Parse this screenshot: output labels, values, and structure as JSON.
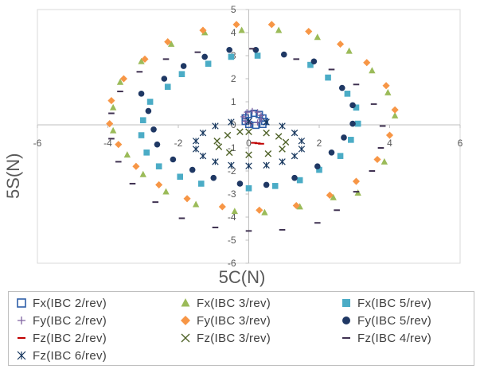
{
  "chart_data": {
    "type": "scatter",
    "xlabel": "5C(N)",
    "ylabel": "5S(N)",
    "xlim": [
      -6,
      6
    ],
    "ylim": [
      -6,
      5
    ],
    "x_ticks": [
      -6,
      -4,
      -2,
      0,
      2,
      4,
      6
    ],
    "y_ticks": [
      -6,
      -5,
      -4,
      -3,
      -2,
      -1,
      0,
      1,
      2,
      3,
      4,
      5
    ],
    "grid": false,
    "legend_position": "bottom",
    "series": [
      {
        "name": "Fx(IBC 2/rev)",
        "color": "#2E5FA8",
        "marker": "open-square",
        "points": [
          [
            0.0,
            0.45
          ],
          [
            0.15,
            0.5
          ],
          [
            0.3,
            0.45
          ],
          [
            0.4,
            0.3
          ],
          [
            0.45,
            0.15
          ],
          [
            0.4,
            0.02
          ],
          [
            0.2,
            -0.02
          ],
          [
            0.0,
            0.02
          ],
          [
            -0.1,
            0.15
          ],
          [
            -0.1,
            0.3
          ]
        ]
      },
      {
        "name": "Fx(IBC 3/rev)",
        "color": "#9BBB59",
        "marker": "triangle",
        "points": [
          [
            -0.2,
            4.1
          ],
          [
            0.85,
            4.1
          ],
          [
            1.95,
            3.8
          ],
          [
            2.85,
            3.2
          ],
          [
            3.5,
            2.35
          ],
          [
            3.95,
            1.4
          ],
          [
            4.15,
            0.4
          ],
          [
            3.85,
            -1.6
          ],
          [
            3.1,
            -2.95
          ],
          [
            2.4,
            -3.15
          ],
          [
            1.45,
            -3.55
          ],
          [
            0.45,
            -3.8
          ],
          [
            -0.4,
            -3.75
          ],
          [
            -1.5,
            -3.45
          ],
          [
            -2.35,
            -2.9
          ],
          [
            -3.0,
            -2.15
          ],
          [
            -3.45,
            -1.3
          ],
          [
            -3.85,
            -0.25
          ],
          [
            -3.85,
            0.75
          ],
          [
            -3.65,
            1.85
          ],
          [
            -3.05,
            2.75
          ],
          [
            -2.2,
            3.5
          ],
          [
            -1.25,
            4.0
          ]
        ]
      },
      {
        "name": "Fx(IBC 5/rev)",
        "color": "#4BACC6",
        "marker": "square",
        "points": [
          [
            0.25,
            3.0
          ],
          [
            1.75,
            2.6
          ],
          [
            2.25,
            2.05
          ],
          [
            2.8,
            1.35
          ],
          [
            3.05,
            0.75
          ],
          [
            3.1,
            0.05
          ],
          [
            2.9,
            -0.65
          ],
          [
            2.6,
            -1.35
          ],
          [
            2.0,
            -1.95
          ],
          [
            1.45,
            -2.4
          ],
          [
            0.75,
            -2.65
          ],
          [
            0.0,
            -2.75
          ],
          [
            -1.35,
            -2.55
          ],
          [
            -1.95,
            -2.25
          ],
          [
            -2.55,
            -1.8
          ],
          [
            -2.9,
            -1.2
          ],
          [
            -3.05,
            -0.45
          ],
          [
            -3.0,
            0.2
          ],
          [
            -2.8,
            1.0
          ],
          [
            -2.3,
            1.65
          ],
          [
            -1.9,
            2.2
          ],
          [
            -1.15,
            2.65
          ],
          [
            -0.5,
            2.95
          ]
        ]
      },
      {
        "name": "Fy(IBC 2/rev)",
        "color": "#8064A2",
        "marker": "plus",
        "points": [
          [
            -0.05,
            0.55
          ],
          [
            0.1,
            0.6
          ],
          [
            0.25,
            0.55
          ],
          [
            0.35,
            0.4
          ],
          [
            0.35,
            0.25
          ],
          [
            0.25,
            0.1
          ],
          [
            0.05,
            0.05
          ],
          [
            -0.1,
            0.15
          ],
          [
            -0.15,
            0.35
          ]
        ]
      },
      {
        "name": "Fy(IBC 3/rev)",
        "color": "#F79646",
        "marker": "diamond",
        "points": [
          [
            -0.35,
            4.35
          ],
          [
            0.65,
            4.35
          ],
          [
            1.7,
            4.05
          ],
          [
            2.6,
            3.5
          ],
          [
            3.35,
            2.7
          ],
          [
            3.9,
            1.7
          ],
          [
            4.15,
            0.65
          ],
          [
            4.0,
            -0.45
          ],
          [
            3.65,
            -1.5
          ],
          [
            3.05,
            -2.45
          ],
          [
            2.3,
            -3.05
          ],
          [
            1.35,
            -3.5
          ],
          [
            0.3,
            -3.7
          ],
          [
            -0.75,
            -3.55
          ],
          [
            -1.75,
            -3.2
          ],
          [
            -2.55,
            -2.6
          ],
          [
            -3.2,
            -1.8
          ],
          [
            -3.7,
            -0.85
          ],
          [
            -3.95,
            0.05
          ],
          [
            -3.9,
            1.05
          ],
          [
            -3.55,
            2.0
          ],
          [
            -2.95,
            2.85
          ],
          [
            -2.3,
            3.6
          ],
          [
            -1.3,
            4.1
          ]
        ]
      },
      {
        "name": "Fy(IBC 5/rev)",
        "color": "#1F3864",
        "marker": "circle",
        "points": [
          [
            0.2,
            3.25
          ],
          [
            1.0,
            3.05
          ],
          [
            1.85,
            2.75
          ],
          [
            2.65,
            1.6
          ],
          [
            2.95,
            0.85
          ],
          [
            2.95,
            0.05
          ],
          [
            2.7,
            -0.55
          ],
          [
            2.35,
            -1.2
          ],
          [
            1.95,
            -1.8
          ],
          [
            1.3,
            -2.3
          ],
          [
            0.5,
            -2.6
          ],
          [
            -0.25,
            -2.55
          ],
          [
            -1.0,
            -2.3
          ],
          [
            -1.6,
            -1.95
          ],
          [
            -2.15,
            -1.5
          ],
          [
            -2.6,
            -0.85
          ],
          [
            -2.7,
            -0.2
          ],
          [
            -2.85,
            0.6
          ],
          [
            -3.05,
            1.35
          ],
          [
            -2.4,
            2.0
          ],
          [
            -1.85,
            2.55
          ],
          [
            -1.25,
            2.95
          ],
          [
            -0.55,
            3.25
          ]
        ]
      },
      {
        "name": "Fz(IBC 2/rev)",
        "color": "#C00000",
        "marker": "dash",
        "points": [
          [
            0.15,
            -0.78
          ],
          [
            0.25,
            -0.8
          ],
          [
            0.35,
            -0.82
          ]
        ]
      },
      {
        "name": "Fz(IBC 3/rev)",
        "color": "#4F6228",
        "marker": "x",
        "points": [
          [
            0.0,
            -0.3
          ],
          [
            0.5,
            -0.35
          ],
          [
            0.85,
            -0.5
          ],
          [
            1.05,
            -0.75
          ],
          [
            0.95,
            -1.05
          ],
          [
            0.55,
            -1.25
          ],
          [
            0.0,
            -1.3
          ],
          [
            -0.55,
            -1.2
          ],
          [
            -0.85,
            -0.95
          ],
          [
            -0.9,
            -0.7
          ],
          [
            -0.6,
            -0.45
          ],
          [
            -0.25,
            -0.3
          ]
        ]
      },
      {
        "name": "Fz(IBC 4/rev)",
        "color": "#3F3151",
        "marker": "dash",
        "points": [
          [
            0.1,
            3.3
          ],
          [
            1.35,
            2.85
          ],
          [
            2.35,
            2.4
          ],
          [
            3.05,
            1.75
          ],
          [
            3.55,
            0.9
          ],
          [
            3.8,
            -0.05
          ],
          [
            3.75,
            -1.0
          ],
          [
            3.5,
            -2.0
          ],
          [
            3.05,
            -2.9
          ],
          [
            2.5,
            -3.7
          ],
          [
            1.95,
            -4.25
          ],
          [
            0.95,
            -4.55
          ],
          [
            0.0,
            -4.6
          ],
          [
            -0.95,
            -4.45
          ],
          [
            -1.9,
            -4.05
          ],
          [
            -2.65,
            -3.35
          ],
          [
            -3.3,
            -2.55
          ],
          [
            -3.7,
            -1.6
          ],
          [
            -3.9,
            -0.6
          ],
          [
            -3.9,
            0.5
          ],
          [
            -3.65,
            1.45
          ],
          [
            -3.1,
            2.3
          ],
          [
            -2.35,
            2.85
          ],
          [
            -1.45,
            3.15
          ]
        ]
      },
      {
        "name": "Fz(IBC 6/rev)",
        "color": "#17375E",
        "marker": "asterisk",
        "points": [
          [
            0.0,
            0.15
          ],
          [
            0.5,
            0.12
          ],
          [
            0.95,
            -0.05
          ],
          [
            1.3,
            -0.35
          ],
          [
            1.5,
            -0.7
          ],
          [
            1.5,
            -1.05
          ],
          [
            1.3,
            -1.35
          ],
          [
            0.95,
            -1.6
          ],
          [
            0.5,
            -1.75
          ],
          [
            0.0,
            -1.78
          ],
          [
            -0.5,
            -1.75
          ],
          [
            -0.95,
            -1.6
          ],
          [
            -1.3,
            -1.35
          ],
          [
            -1.5,
            -1.05
          ],
          [
            -1.5,
            -0.7
          ],
          [
            -1.3,
            -0.35
          ],
          [
            -0.95,
            -0.05
          ],
          [
            -0.5,
            0.12
          ]
        ]
      }
    ]
  },
  "legend": [
    {
      "label": "Fx(IBC 2/rev)",
      "marker": "open-square",
      "color": "#2E5FA8"
    },
    {
      "label": "Fx(IBC 3/rev)",
      "marker": "triangle",
      "color": "#9BBB59"
    },
    {
      "label": "Fx(IBC 5/rev)",
      "marker": "square",
      "color": "#4BACC6"
    },
    {
      "label": "Fy(IBC 2/rev)",
      "marker": "plus",
      "color": "#8064A2"
    },
    {
      "label": "Fy(IBC 3/rev)",
      "marker": "diamond",
      "color": "#F79646"
    },
    {
      "label": "Fy(IBC 5/rev)",
      "marker": "circle",
      "color": "#1F3864"
    },
    {
      "label": "Fz(IBC 2/rev)",
      "marker": "dash",
      "color": "#C00000"
    },
    {
      "label": "Fz(IBC 3/rev)",
      "marker": "x",
      "color": "#4F6228"
    },
    {
      "label": "Fz(IBC 4/rev)",
      "marker": "dash",
      "color": "#3F3151"
    },
    {
      "label": "Fz(IBC 6/rev)",
      "marker": "asterisk",
      "color": "#17375E"
    }
  ]
}
